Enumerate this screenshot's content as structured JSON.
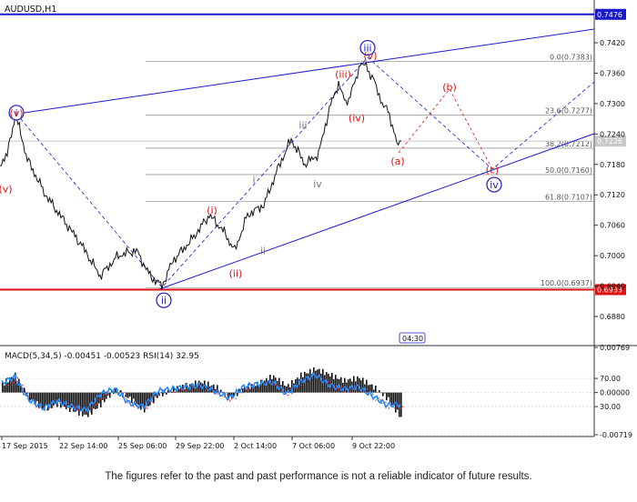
{
  "symbol_label": "AUDUSD,H1",
  "disclaimer": "The figures refer to the past and past performance is not a reliable indicator of future results.",
  "chart_data": [
    {
      "type": "line",
      "title": "AUDUSD,H1",
      "ylim": [
        0.686,
        0.75
      ],
      "price_axis_ticks": [
        "0.7420",
        "0.7360",
        "0.7300",
        "0.7240",
        "0.7180",
        "0.7120",
        "0.7060",
        "0.7000",
        "0.6940",
        "0.6880"
      ],
      "price_axis_tick_values": [
        0.742,
        0.736,
        0.73,
        0.724,
        0.718,
        0.712,
        0.706,
        0.7,
        0.694,
        0.688
      ],
      "highlighted_levels": [
        {
          "label": "0.7476",
          "value": 0.7476,
          "color": "#1a1acc"
        },
        {
          "label": "0.6933",
          "value": 0.6933,
          "color": "#dd1111"
        },
        {
          "label": "0.7226",
          "value": 0.7226,
          "color": "#c8c8c8"
        }
      ],
      "fibonacci_levels": [
        {
          "label": "0.0(0.7383)",
          "value": 0.7383
        },
        {
          "label": "23.6(0.7277)",
          "value": 0.7277
        },
        {
          "label": "38.2(0.7212)",
          "value": 0.7212
        },
        {
          "label": "50.0(0.7160)",
          "value": 0.716
        },
        {
          "label": "61.8(0.7107)",
          "value": 0.7107
        },
        {
          "label": "100.0(0.6937)",
          "value": 0.6937
        }
      ],
      "x_tick_labels": [
        "17 Sep 2015",
        "22 Sep 14:00",
        "25 Sep 06:00",
        "29 Sep 22:00",
        "2 Oct 14:00",
        "7 Oct 06:00",
        "9 Oct 22:00"
      ],
      "time_scale_tags": [
        "04:30"
      ],
      "price_path": {
        "x": [
          0,
          8,
          17,
          30,
          50,
          70,
          90,
          110,
          130,
          150,
          165,
          178,
          190,
          210,
          230,
          245,
          258,
          272,
          290,
          305,
          320,
          335,
          350,
          362,
          372,
          380,
          388,
          396,
          404,
          412,
          420,
          428,
          436,
          441
        ],
        "y": [
          0.718,
          0.72,
          0.728,
          0.719,
          0.712,
          0.707,
          0.702,
          0.696,
          0.7,
          0.701,
          0.696,
          0.694,
          0.699,
          0.703,
          0.708,
          0.705,
          0.701,
          0.708,
          0.71,
          0.717,
          0.723,
          0.718,
          0.72,
          0.729,
          0.734,
          0.73,
          0.733,
          0.738,
          0.737,
          0.734,
          0.73,
          0.728,
          0.722,
          0.7226
        ]
      },
      "wave_labels": [
        {
          "text": "i",
          "style": "circled",
          "color": "#1a1acc",
          "x": 18,
          "y": 0.7282
        },
        {
          "text": "ii",
          "style": "circled",
          "color": "#1a1acc",
          "x": 180,
          "y": 0.6912
        },
        {
          "text": "iii",
          "style": "circled",
          "color": "#1a1acc",
          "x": 404,
          "y": 0.741
        },
        {
          "text": "iv",
          "style": "circled",
          "color": "#1a1acc",
          "x": 543,
          "y": 0.714
        },
        {
          "text": "v",
          "style": "parenthesis",
          "color": "#dd1111",
          "x": 18,
          "y": 0.7282
        },
        {
          "text": "v",
          "style": "parenthesis",
          "color": "#dd1111",
          "x": 6,
          "y": 0.7132
        },
        {
          "text": "i",
          "style": "parenthesis",
          "color": "#dd1111",
          "x": 233,
          "y": 0.709
        },
        {
          "text": "ii",
          "style": "parenthesis",
          "color": "#dd1111",
          "x": 259,
          "y": 0.6965
        },
        {
          "text": "iii",
          "style": "parenthesis",
          "color": "#dd1111",
          "x": 377,
          "y": 0.7358
        },
        {
          "text": "iv",
          "style": "parenthesis",
          "color": "#dd1111",
          "x": 392,
          "y": 0.7272
        },
        {
          "text": "v",
          "style": "parenthesis",
          "color": "#dd1111",
          "x": 407,
          "y": 0.7395
        },
        {
          "text": "a",
          "style": "parenthesis",
          "color": "#dd1111",
          "x": 437,
          "y": 0.7187
        },
        {
          "text": "b",
          "style": "parenthesis",
          "color": "#dd1111",
          "x": 494,
          "y": 0.7333
        },
        {
          "text": "c",
          "style": "parenthesis",
          "color": "#dd1111",
          "x": 541,
          "y": 0.717
        },
        {
          "text": "i",
          "style": "plain",
          "color": "#777777",
          "x": 279,
          "y": 0.715
        },
        {
          "text": "ii",
          "style": "plain",
          "color": "#777777",
          "x": 289,
          "y": 0.701
        },
        {
          "text": "iii",
          "style": "plain",
          "color": "#777777",
          "x": 333,
          "y": 0.7258
        },
        {
          "text": "iv",
          "style": "plain",
          "color": "#777777",
          "x": 349,
          "y": 0.7142
        }
      ]
    },
    {
      "type": "line",
      "title": "MACD(5,34,5) -0.00451 -0.00523 RSI(14) 32.95",
      "ylim": [
        -0.00719,
        0.00769
      ],
      "axis_labels": [
        "0.00769",
        "70.00",
        "0.00000",
        "30.00",
        "-0.00719"
      ],
      "axis_values": [
        0.00769,
        70.0,
        0.0,
        30.0,
        -0.00719
      ],
      "series": [
        {
          "name": "MACD",
          "values": [
            0.0012,
            0.003,
            -0.001,
            -0.0028,
            -0.002,
            -0.003,
            -0.004,
            -0.002,
            0.0005,
            -0.001,
            -0.003,
            -0.0005,
            0.0005,
            0.0012,
            0.0018,
            0.001,
            -0.001,
            0.0008,
            0.0015,
            0.0028,
            0.001,
            0.003,
            0.004,
            0.003,
            0.002,
            0.0025,
            0.001,
            -0.001,
            -0.0045
          ]
        },
        {
          "name": "RSI",
          "values": [
            62,
            72,
            40,
            28,
            38,
            30,
            25,
            48,
            55,
            35,
            30,
            52,
            55,
            58,
            60,
            52,
            42,
            58,
            62,
            65,
            48,
            66,
            75,
            60,
            55,
            58,
            45,
            32,
            33
          ]
        }
      ]
    }
  ]
}
